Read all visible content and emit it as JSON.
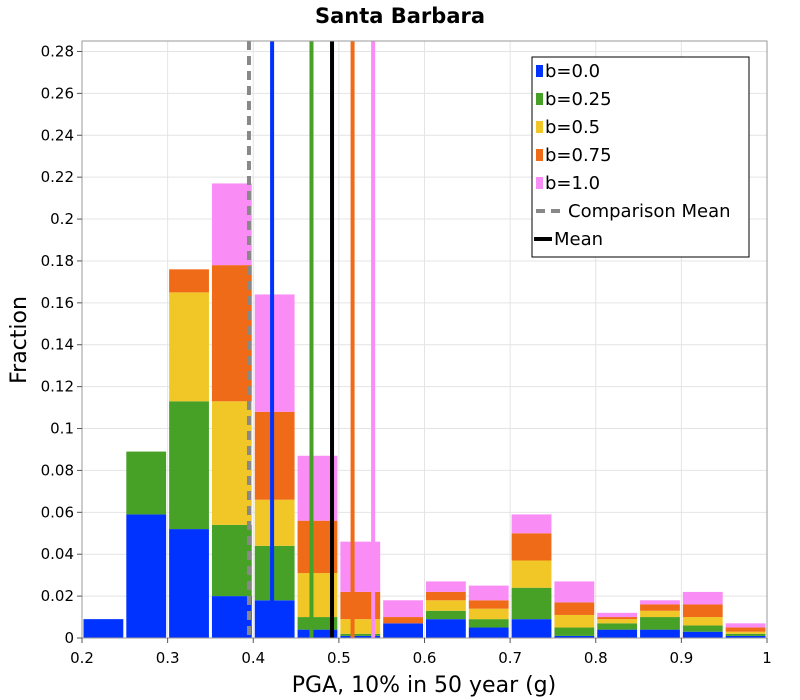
{
  "chart_data": {
    "type": "bar",
    "stacked": true,
    "title": "Santa Barbara",
    "xlabel": "PGA, 10% in 50 year (g)",
    "ylabel": "Fraction",
    "xlim": [
      0.2,
      1.0
    ],
    "ylim": [
      0,
      0.285
    ],
    "grid": true,
    "legend_position": "top-right",
    "x_ticks": [
      "0.2",
      "0.3",
      "0.4",
      "0.5",
      "0.6",
      "0.7",
      "0.8",
      "0.9",
      "1"
    ],
    "y_ticks": [
      "0",
      "0.02",
      "0.04",
      "0.06",
      "0.08",
      "0.1",
      "0.12",
      "0.14",
      "0.16",
      "0.18",
      "0.2",
      "0.22",
      "0.24",
      "0.26",
      "0.28"
    ],
    "bin_starts": [
      0.2,
      0.25,
      0.3,
      0.35,
      0.4,
      0.45,
      0.5,
      0.55,
      0.6,
      0.65,
      0.7,
      0.75,
      0.8,
      0.85,
      0.9,
      0.95
    ],
    "bin_width": 0.05,
    "series": [
      {
        "name": "b=0.0",
        "color": "#0033ff",
        "values": [
          0.009,
          0.059,
          0.052,
          0.02,
          0.018,
          0.004,
          0.001,
          0.007,
          0.009,
          0.005,
          0.009,
          0.001,
          0.004,
          0.004,
          0.003,
          0.001
        ]
      },
      {
        "name": "b=0.25",
        "color": "#47a127",
        "values": [
          0.0,
          0.03,
          0.061,
          0.034,
          0.026,
          0.006,
          0.001,
          0.0,
          0.004,
          0.004,
          0.015,
          0.004,
          0.003,
          0.006,
          0.003,
          0.001
        ]
      },
      {
        "name": "b=0.5",
        "color": "#f0c726",
        "values": [
          0.0,
          0.0,
          0.052,
          0.059,
          0.022,
          0.021,
          0.007,
          0.0,
          0.005,
          0.005,
          0.013,
          0.006,
          0.002,
          0.003,
          0.004,
          0.001
        ]
      },
      {
        "name": "b=0.75",
        "color": "#f06b18",
        "values": [
          0.0,
          0.0,
          0.011,
          0.065,
          0.042,
          0.025,
          0.013,
          0.003,
          0.004,
          0.004,
          0.013,
          0.006,
          0.001,
          0.003,
          0.006,
          0.002
        ]
      },
      {
        "name": "b=1.0",
        "color": "#f98cf5",
        "values": [
          0.0,
          0.0,
          0.0,
          0.039,
          0.056,
          0.031,
          0.024,
          0.008,
          0.005,
          0.007,
          0.009,
          0.01,
          0.002,
          0.002,
          0.006,
          0.002
        ]
      }
    ],
    "mean_lines": [
      {
        "series": "b=0.0",
        "color": "#0033ff",
        "x": 0.422
      },
      {
        "series": "b=0.25",
        "color": "#47a127",
        "x": 0.468
      },
      {
        "series": "b=0.75",
        "color": "#f06b18",
        "x": 0.516
      },
      {
        "series": "b=1.0",
        "color": "#f98cf5",
        "x": 0.54
      },
      {
        "series": "Mean",
        "color": "#000000",
        "x": 0.492
      }
    ],
    "comparison_mean": {
      "x": 0.395,
      "color": "#888888"
    },
    "legend": [
      {
        "label": "b=0.0",
        "kind": "box",
        "color": "#0033ff"
      },
      {
        "label": "b=0.25",
        "kind": "box",
        "color": "#47a127"
      },
      {
        "label": "b=0.5",
        "kind": "box",
        "color": "#f0c726"
      },
      {
        "label": "b=0.75",
        "kind": "box",
        "color": "#f06b18"
      },
      {
        "label": "b=1.0",
        "kind": "box",
        "color": "#f98cf5"
      },
      {
        "label": "Comparison Mean",
        "kind": "dash",
        "color": "#888888"
      },
      {
        "label": "Mean",
        "kind": "line",
        "color": "#000000"
      }
    ]
  }
}
